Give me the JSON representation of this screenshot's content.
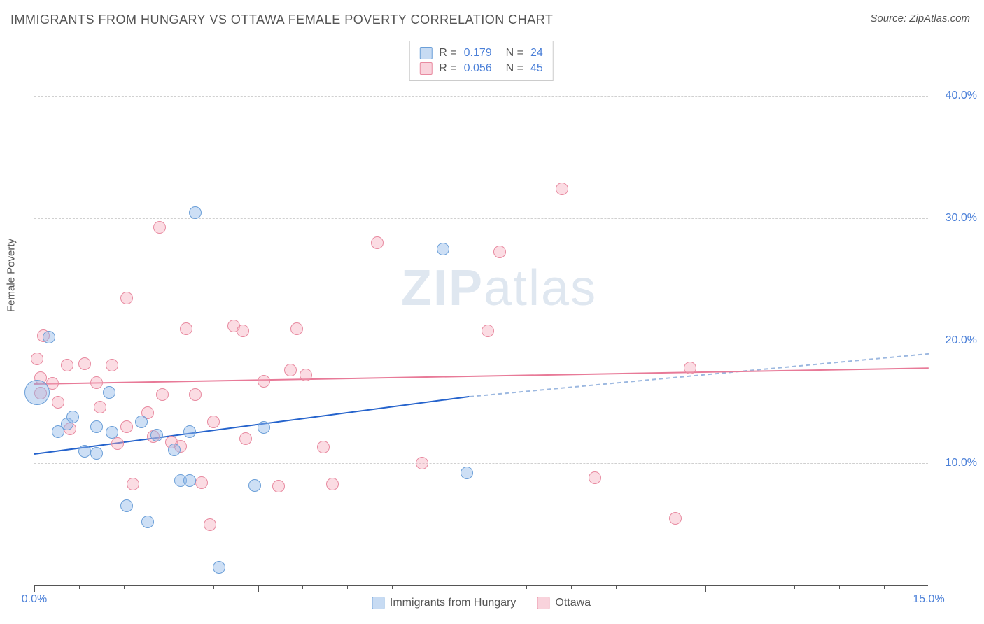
{
  "title": "IMMIGRANTS FROM HUNGARY VS OTTAWA FEMALE POVERTY CORRELATION CHART",
  "source_prefix": "Source: ",
  "source_name": "ZipAtlas.com",
  "ylabel": "Female Poverty",
  "watermark": "ZIPatlas",
  "xlim": [
    0,
    15
  ],
  "ylim": [
    0,
    45
  ],
  "yticks": [
    10,
    20,
    30,
    40
  ],
  "ytick_labels": [
    "10.0%",
    "20.0%",
    "30.0%",
    "40.0%"
  ],
  "xticks": [
    0,
    3.75,
    7.5,
    11.25,
    15
  ],
  "xtick_labels": [
    "0.0%",
    "",
    "",
    "",
    "15.0%"
  ],
  "xtick_minor": [
    0.75,
    1.5,
    2.25,
    3.0,
    4.5,
    5.25,
    6.0,
    6.75,
    8.25,
    9.0,
    9.75,
    10.5,
    12.0,
    12.75,
    13.5,
    14.25
  ],
  "legend_top": [
    {
      "swatch": "sw-blue",
      "r_label": "R =",
      "r_val": "0.179",
      "n_label": "N =",
      "n_val": "24"
    },
    {
      "swatch": "sw-pink",
      "r_label": "R =",
      "r_val": "0.056",
      "n_label": "N =",
      "n_val": "45"
    }
  ],
  "legend_bottom": [
    {
      "swatch": "sw-blue",
      "label": "Immigrants from Hungary"
    },
    {
      "swatch": "sw-pink",
      "label": "Ottawa"
    }
  ],
  "series_blue": {
    "color_fill": "rgba(144,184,232,0.45)",
    "color_stroke": "#6b9fd8",
    "points": [
      {
        "x": 0.05,
        "y": 15.8,
        "r": 18
      },
      {
        "x": 0.55,
        "y": 13.2,
        "r": 9
      },
      {
        "x": 0.4,
        "y": 12.6,
        "r": 9
      },
      {
        "x": 0.85,
        "y": 11.0,
        "r": 9
      },
      {
        "x": 1.25,
        "y": 15.8,
        "r": 9
      },
      {
        "x": 1.05,
        "y": 10.8,
        "r": 9
      },
      {
        "x": 1.55,
        "y": 6.5,
        "r": 9
      },
      {
        "x": 1.3,
        "y": 12.5,
        "r": 9
      },
      {
        "x": 1.9,
        "y": 5.2,
        "r": 9
      },
      {
        "x": 2.05,
        "y": 12.3,
        "r": 9
      },
      {
        "x": 2.45,
        "y": 8.6,
        "r": 9
      },
      {
        "x": 2.6,
        "y": 8.6,
        "r": 9
      },
      {
        "x": 2.6,
        "y": 12.6,
        "r": 9
      },
      {
        "x": 2.7,
        "y": 30.5,
        "r": 9
      },
      {
        "x": 3.1,
        "y": 1.5,
        "r": 9
      },
      {
        "x": 3.7,
        "y": 8.2,
        "r": 9
      },
      {
        "x": 3.85,
        "y": 12.9,
        "r": 9
      },
      {
        "x": 6.85,
        "y": 27.5,
        "r": 9
      },
      {
        "x": 7.25,
        "y": 9.2,
        "r": 9
      },
      {
        "x": 0.25,
        "y": 20.3,
        "r": 9
      },
      {
        "x": 2.35,
        "y": 11.1,
        "r": 9
      },
      {
        "x": 0.65,
        "y": 13.8,
        "r": 9
      },
      {
        "x": 1.8,
        "y": 13.4,
        "r": 9
      },
      {
        "x": 1.05,
        "y": 13.0,
        "r": 9
      }
    ],
    "trend": {
      "x0": 0,
      "y0": 10.8,
      "x1_solid": 7.3,
      "y1_solid": 15.5,
      "x1_dash": 15,
      "y1_dash": 19.0
    }
  },
  "series_pink": {
    "color_fill": "rgba(244,168,185,0.4)",
    "color_stroke": "#e88aa0",
    "points": [
      {
        "x": 0.1,
        "y": 17.0,
        "r": 9
      },
      {
        "x": 0.1,
        "y": 15.7,
        "r": 9
      },
      {
        "x": 0.15,
        "y": 20.4,
        "r": 9
      },
      {
        "x": 0.05,
        "y": 18.5,
        "r": 9
      },
      {
        "x": 0.3,
        "y": 16.5,
        "r": 9
      },
      {
        "x": 0.55,
        "y": 18.0,
        "r": 9
      },
      {
        "x": 0.6,
        "y": 12.8,
        "r": 9
      },
      {
        "x": 0.85,
        "y": 18.1,
        "r": 9
      },
      {
        "x": 1.05,
        "y": 16.6,
        "r": 9
      },
      {
        "x": 1.3,
        "y": 18.0,
        "r": 9
      },
      {
        "x": 1.4,
        "y": 11.6,
        "r": 9
      },
      {
        "x": 1.55,
        "y": 23.5,
        "r": 9
      },
      {
        "x": 1.55,
        "y": 13.0,
        "r": 9
      },
      {
        "x": 1.65,
        "y": 8.3,
        "r": 9
      },
      {
        "x": 1.9,
        "y": 14.1,
        "r": 9
      },
      {
        "x": 2.1,
        "y": 29.3,
        "r": 9
      },
      {
        "x": 2.15,
        "y": 15.6,
        "r": 9
      },
      {
        "x": 2.3,
        "y": 11.7,
        "r": 9
      },
      {
        "x": 2.45,
        "y": 11.4,
        "r": 9
      },
      {
        "x": 2.55,
        "y": 21.0,
        "r": 9
      },
      {
        "x": 2.7,
        "y": 15.6,
        "r": 9
      },
      {
        "x": 2.8,
        "y": 8.4,
        "r": 9
      },
      {
        "x": 2.95,
        "y": 5.0,
        "r": 9
      },
      {
        "x": 3.0,
        "y": 13.4,
        "r": 9
      },
      {
        "x": 3.35,
        "y": 21.2,
        "r": 9
      },
      {
        "x": 3.5,
        "y": 20.8,
        "r": 9
      },
      {
        "x": 3.85,
        "y": 16.7,
        "r": 9
      },
      {
        "x": 4.1,
        "y": 8.1,
        "r": 9
      },
      {
        "x": 4.3,
        "y": 17.6,
        "r": 9
      },
      {
        "x": 4.4,
        "y": 21.0,
        "r": 9
      },
      {
        "x": 4.55,
        "y": 17.2,
        "r": 9
      },
      {
        "x": 4.85,
        "y": 11.3,
        "r": 9
      },
      {
        "x": 5.0,
        "y": 8.3,
        "r": 9
      },
      {
        "x": 5.75,
        "y": 28.0,
        "r": 9
      },
      {
        "x": 6.5,
        "y": 10.0,
        "r": 9
      },
      {
        "x": 7.6,
        "y": 20.8,
        "r": 9
      },
      {
        "x": 7.8,
        "y": 27.3,
        "r": 9
      },
      {
        "x": 8.85,
        "y": 32.4,
        "r": 9
      },
      {
        "x": 9.4,
        "y": 8.8,
        "r": 9
      },
      {
        "x": 10.75,
        "y": 5.5,
        "r": 9
      },
      {
        "x": 11.0,
        "y": 17.8,
        "r": 9
      },
      {
        "x": 1.1,
        "y": 14.6,
        "r": 9
      },
      {
        "x": 0.4,
        "y": 15.0,
        "r": 9
      },
      {
        "x": 3.55,
        "y": 12.0,
        "r": 9
      },
      {
        "x": 2.0,
        "y": 12.2,
        "r": 9
      }
    ],
    "trend": {
      "x0": 0,
      "y0": 16.5,
      "x1_solid": 15,
      "y1_solid": 17.8
    }
  },
  "colors": {
    "background": "#ffffff",
    "axis": "#555555",
    "grid": "#d0d0d0",
    "tick_text": "#4a7fd8",
    "label_text": "#555555",
    "blue_line": "#2563cc",
    "pink_line": "#e87a98"
  },
  "font": {
    "title_size": 18,
    "label_size": 15,
    "tick_size": 16
  }
}
